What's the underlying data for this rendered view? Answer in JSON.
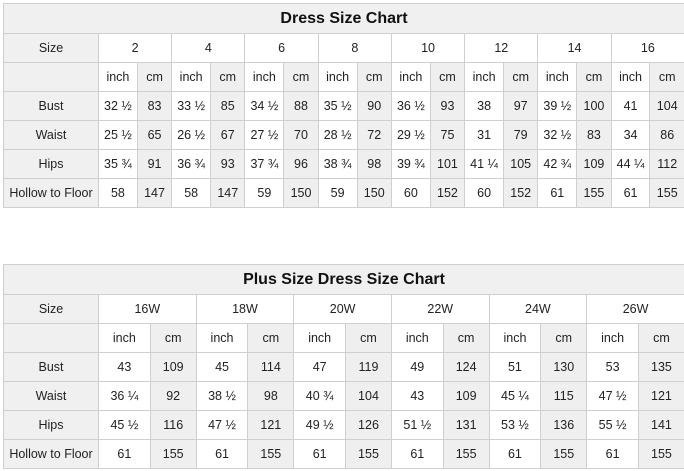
{
  "tables": [
    {
      "title": "Dress Size Chart",
      "size_label": "Size",
      "sizes": [
        "2",
        "4",
        "6",
        "8",
        "10",
        "12",
        "14",
        "16"
      ],
      "unit_inch": "inch",
      "unit_cm": "cm",
      "rows": [
        {
          "label": "Bust",
          "values": [
            "32 ½",
            "83",
            "33 ½",
            "85",
            "34 ½",
            "88",
            "35 ½",
            "90",
            "36 ½",
            "93",
            "38",
            "97",
            "39 ½",
            "100",
            "41",
            "104"
          ]
        },
        {
          "label": "Waist",
          "values": [
            "25 ½",
            "65",
            "26 ½",
            "67",
            "27 ½",
            "70",
            "28 ½",
            "72",
            "29 ½",
            "75",
            "31",
            "79",
            "32 ½",
            "83",
            "34",
            "86"
          ]
        },
        {
          "label": "Hips",
          "values": [
            "35 ¾",
            "91",
            "36 ¾",
            "93",
            "37 ¾",
            "96",
            "38 ¾",
            "98",
            "39 ¾",
            "101",
            "41 ¼",
            "105",
            "42 ¾",
            "109",
            "44 ¼",
            "112"
          ]
        },
        {
          "label": "Hollow to Floor",
          "values": [
            "58",
            "147",
            "58",
            "147",
            "59",
            "150",
            "59",
            "150",
            "60",
            "152",
            "60",
            "152",
            "61",
            "155",
            "61",
            "155"
          ]
        }
      ]
    },
    {
      "title": "Plus Size Dress Size Chart",
      "size_label": "Size",
      "sizes": [
        "16W",
        "18W",
        "20W",
        "22W",
        "24W",
        "26W"
      ],
      "unit_inch": "inch",
      "unit_cm": "cm",
      "rows": [
        {
          "label": "Bust",
          "values": [
            "43",
            "109",
            "45",
            "114",
            "47",
            "119",
            "49",
            "124",
            "51",
            "130",
            "53",
            "135"
          ]
        },
        {
          "label": "Waist",
          "values": [
            "36 ¼",
            "92",
            "38 ½",
            "98",
            "40 ¾",
            "104",
            "43",
            "109",
            "45 ¼",
            "115",
            "47 ½",
            "121"
          ]
        },
        {
          "label": "Hips",
          "values": [
            "45 ½",
            "116",
            "47 ½",
            "121",
            "49 ½",
            "126",
            "51 ½",
            "131",
            "53 ½",
            "136",
            "55 ½",
            "141"
          ]
        },
        {
          "label": "Hollow to Floor",
          "values": [
            "61",
            "155",
            "61",
            "155",
            "61",
            "155",
            "61",
            "155",
            "61",
            "155",
            "61",
            "155"
          ]
        }
      ]
    }
  ]
}
